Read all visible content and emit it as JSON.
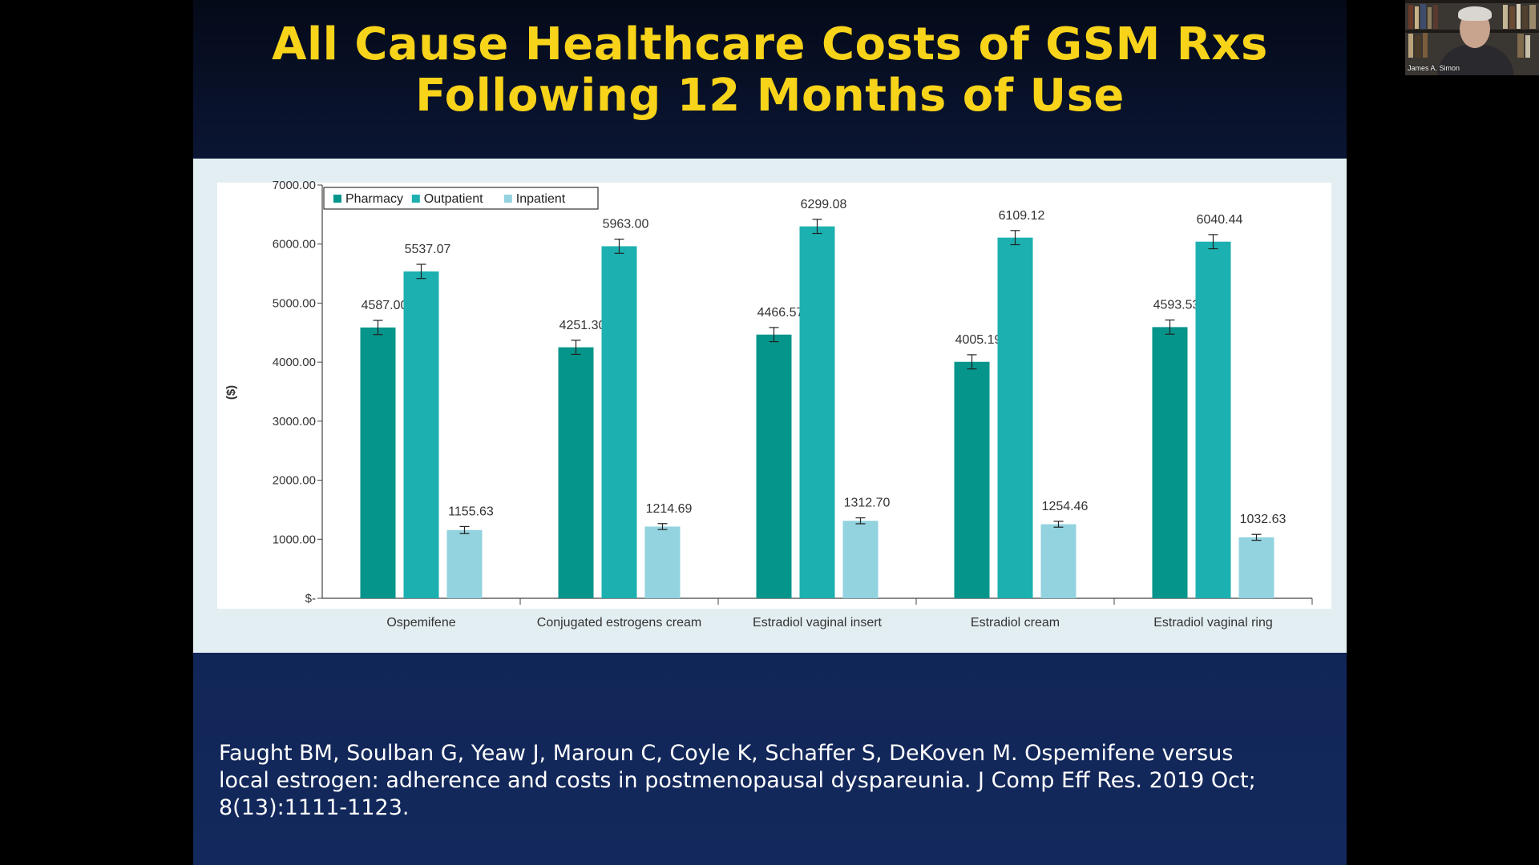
{
  "slide": {
    "title_line1": "All Cause Healthcare Costs of GSM Rxs",
    "title_line2": "Following 12 Months of Use",
    "citation_line1": "Faught BM, Soulban G, Yeaw J, Maroun C, Coyle K, Schaffer S, DeKoven M. Ospemifene versus",
    "citation_line2": "local estrogen: adherence and costs in postmenopausal dyspareunia. J Comp Eff Res. 2019 Oct;",
    "citation_line3": "8(13):1111-1123."
  },
  "webcam": {
    "name": "James A. Simon"
  },
  "colors": {
    "title": "#f7d31a",
    "pharmacy": "#05958a",
    "outpatient": "#1cb0b0",
    "inpatient": "#92d3df"
  },
  "chart_data": {
    "type": "bar",
    "title": "",
    "xlabel": "",
    "ylabel": "($)",
    "ylim": [
      0,
      7000
    ],
    "yticks": [
      0,
      1000,
      2000,
      3000,
      4000,
      5000,
      6000,
      7000
    ],
    "ytick_labels": [
      "$-",
      "1000.00",
      "2000.00",
      "3000.00",
      "4000.00",
      "5000.00",
      "6000.00",
      "7000.00"
    ],
    "categories": [
      "Ospemifene",
      "Conjugated estrogens cream",
      "Estradiol vaginal insert",
      "Estradiol cream",
      "Estradiol vaginal ring"
    ],
    "series": [
      {
        "name": "Pharmacy",
        "values": [
          4587.0,
          4251.3,
          4466.57,
          4005.19,
          4593.53
        ],
        "labels": [
          "4587.00",
          "4251.30",
          "4466.57",
          "4005.19",
          "4593.53"
        ],
        "error": [
          120,
          120,
          120,
          120,
          120
        ]
      },
      {
        "name": "Outpatient",
        "values": [
          5537.07,
          5963.0,
          6299.08,
          6109.12,
          6040.44
        ],
        "labels": [
          "5537.07",
          "5963.00",
          "6299.08",
          "6109.12",
          "6040.44"
        ],
        "error": [
          120,
          120,
          120,
          120,
          120
        ]
      },
      {
        "name": "Inpatient",
        "values": [
          1155.63,
          1214.69,
          1312.7,
          1254.46,
          1032.63
        ],
        "labels": [
          "1155.63",
          "1214.69",
          "1312.70",
          "1254.46",
          "1032.63"
        ],
        "error": [
          60,
          50,
          50,
          50,
          50
        ]
      }
    ],
    "legend": "top-left",
    "grid": false,
    "error_bars": true
  }
}
